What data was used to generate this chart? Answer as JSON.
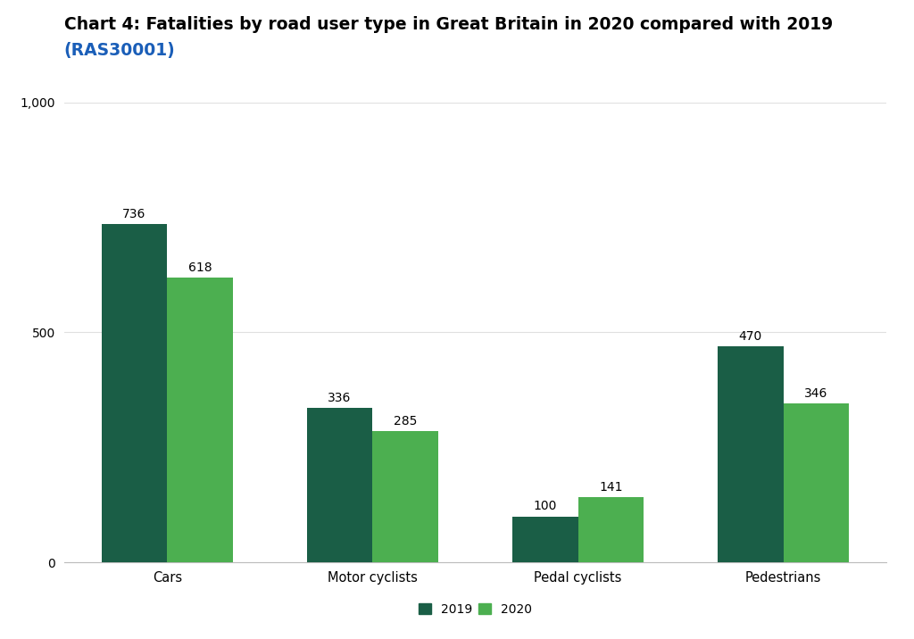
{
  "title_line1": "Chart 4: Fatalities by road user type in Great Britain in 2020 compared with 2019",
  "title_line2": "(RAS30001)",
  "categories": [
    "Cars",
    "Motor cyclists",
    "Pedal cyclists",
    "Pedestrians"
  ],
  "values_2019": [
    736,
    336,
    100,
    470
  ],
  "values_2020": [
    618,
    285,
    141,
    346
  ],
  "color_2019": "#1a5e46",
  "color_2020": "#4caf50",
  "background_color": "#ffffff",
  "ylim": [
    0,
    1000
  ],
  "yticks": [
    0,
    500,
    1000
  ],
  "bar_width": 0.32,
  "legend_labels": [
    "2019",
    "2020"
  ],
  "title_color": "#000000",
  "link_color": "#1a5eb8",
  "label_fontsize": 10.5,
  "tick_fontsize": 10,
  "title_fontsize": 13.5,
  "value_fontsize": 10
}
